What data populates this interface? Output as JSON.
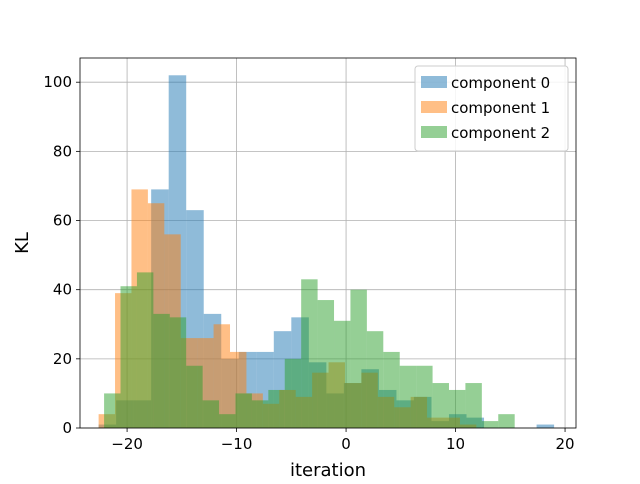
{
  "chart_data": {
    "type": "histogram",
    "title": "",
    "xlabel": "iteration",
    "ylabel": "KL",
    "xlim": [
      -24.3,
      21.0
    ],
    "ylim": [
      0,
      107
    ],
    "x_ticks": [
      -20,
      -10,
      0,
      10,
      20
    ],
    "y_ticks": [
      0,
      20,
      40,
      60,
      80,
      100
    ],
    "grid": true,
    "legend_position": "upper right",
    "series": [
      {
        "name": "component 0",
        "color": "#1f77b4",
        "alpha": 0.5,
        "bin_edges": [
          -22.6,
          -21.0,
          -19.4,
          -17.8,
          -16.2,
          -14.6,
          -13.0,
          -11.4,
          -9.8,
          -8.2,
          -6.6,
          -5.0,
          -3.4,
          -1.8,
          -0.2,
          1.4,
          3.0,
          4.6,
          6.2,
          7.8,
          9.4,
          11.0,
          12.6,
          14.2,
          15.8,
          17.4,
          19.0
        ],
        "counts": [
          1,
          8,
          8,
          69,
          102,
          63,
          33,
          20,
          22,
          22,
          28,
          32,
          19,
          10,
          13,
          17,
          11,
          8,
          9,
          2,
          4,
          3,
          0,
          0,
          0,
          1
        ]
      },
      {
        "name": "component 1",
        "color": "#ff7f0e",
        "alpha": 0.5,
        "bin_edges": [
          -22.6,
          -21.1,
          -19.6,
          -18.1,
          -16.6,
          -15.1,
          -13.6,
          -12.1,
          -10.6,
          -9.1,
          -7.6,
          -6.1,
          -4.6,
          -3.1,
          -1.6,
          -0.1,
          1.4,
          2.9,
          4.4,
          5.9,
          7.4,
          8.9,
          10.4,
          11.9
        ],
        "counts": [
          4,
          39,
          69,
          65,
          56,
          26,
          26,
          30,
          22,
          10,
          7,
          11,
          9,
          16,
          19,
          13,
          16,
          9,
          6,
          9,
          3,
          3,
          1
        ]
      },
      {
        "name": "component 2",
        "color": "#2ca02c",
        "alpha": 0.5,
        "bin_edges": [
          -22.1,
          -20.6,
          -19.1,
          -17.6,
          -16.1,
          -14.6,
          -13.1,
          -11.6,
          -10.1,
          -8.6,
          -7.1,
          -5.6,
          -4.1,
          -2.6,
          -1.1,
          0.4,
          1.9,
          3.4,
          4.9,
          6.4,
          7.9,
          9.4,
          10.9,
          12.4,
          13.9,
          15.4
        ],
        "counts": [
          10,
          41,
          45,
          33,
          32,
          18,
          8,
          4,
          10,
          8,
          11,
          20,
          43,
          37,
          31,
          40,
          28,
          22,
          18,
          18,
          13,
          11,
          13,
          2,
          4
        ]
      }
    ]
  }
}
